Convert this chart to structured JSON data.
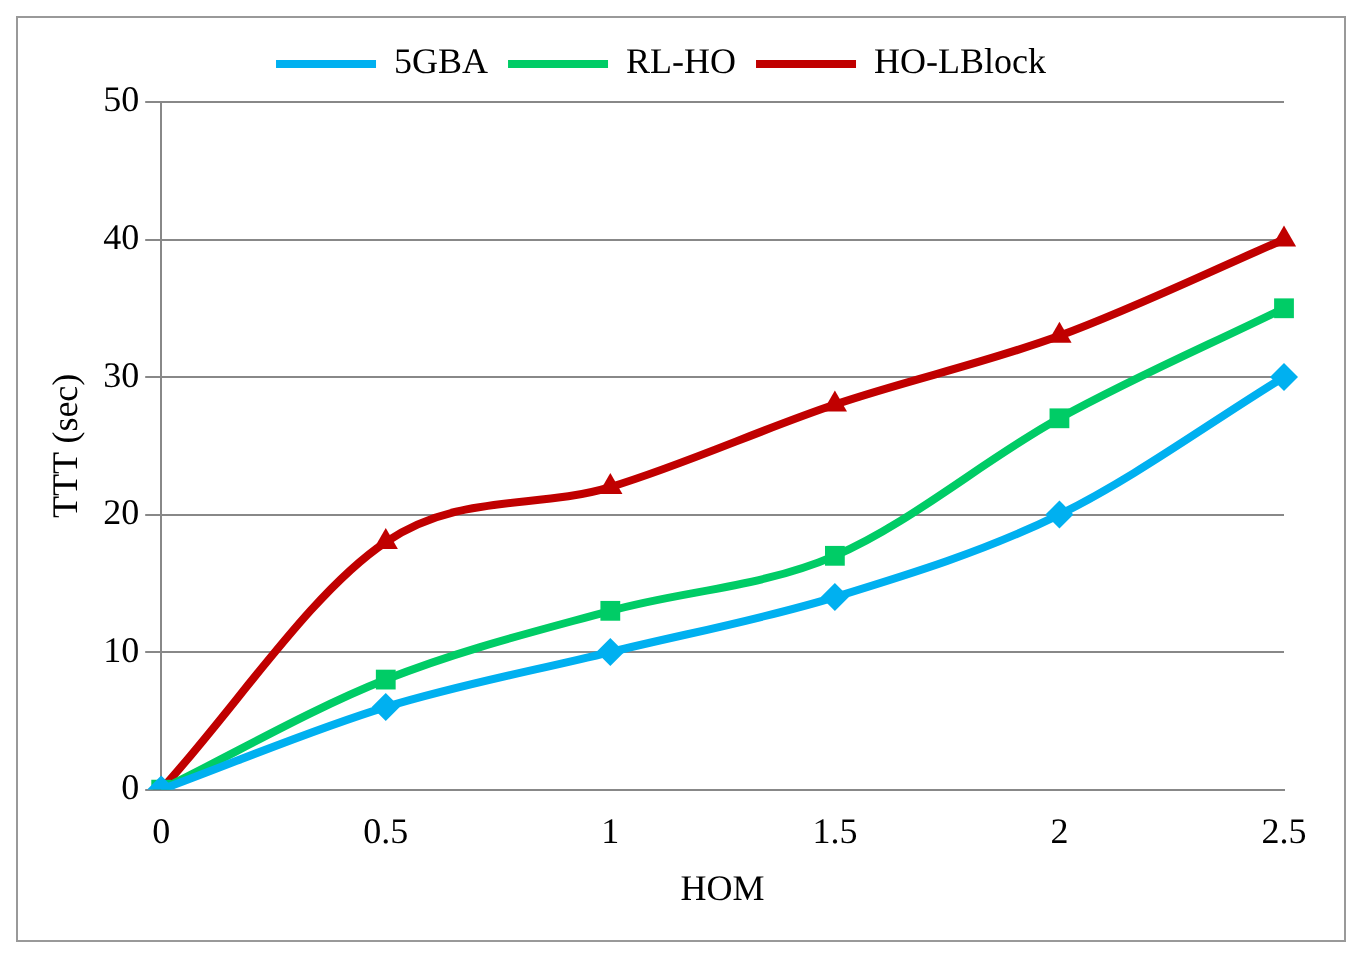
{
  "chart_data": {
    "type": "line",
    "xlabel": "HOM",
    "ylabel": "TTT (sec)",
    "categories": [
      "0",
      "0.5",
      "1",
      "1.5",
      "2",
      "2.5"
    ],
    "series": [
      {
        "name": "5GBA",
        "color": "#00b0f0",
        "marker": "diamond",
        "values": [
          0,
          6,
          10,
          14,
          20,
          30
        ]
      },
      {
        "name": "RL-HO",
        "color": "#00cc66",
        "marker": "square",
        "values": [
          0,
          8,
          13,
          17,
          27,
          35
        ]
      },
      {
        "name": "HO-LBlock",
        "color": "#c00000",
        "marker": "triangle",
        "values": [
          0,
          18,
          22,
          28,
          33,
          40
        ]
      }
    ],
    "ylim": [
      0,
      50
    ],
    "yticks": [
      0,
      10,
      20,
      30,
      40,
      50
    ],
    "grid": "y",
    "legend": "top",
    "line_style": "solid"
  }
}
